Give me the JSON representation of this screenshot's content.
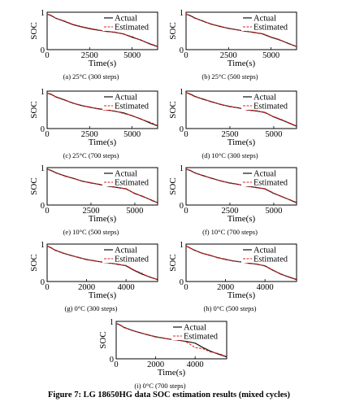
{
  "figure": {
    "caption": "Figure 7: LG 18650HG data SOC estimation results (mixed cycles)",
    "legend": {
      "actual": "Actual",
      "estimated": "Estimated"
    },
    "colors": {
      "actual": "#111111",
      "estimated": "#e02020"
    }
  },
  "chart_data": [
    {
      "type": "line",
      "subcaption": "(a) 25°C (300 steps)",
      "xlabel": "Time(s)",
      "ylabel": "SOC",
      "xlim": [
        0,
        6500
      ],
      "ylim": [
        0,
        1
      ],
      "xticks": [
        0,
        2500,
        5000
      ],
      "yticks": [
        0,
        1
      ],
      "legend_position": "top-right",
      "x": [
        0,
        250,
        500,
        1000,
        1500,
        2000,
        2500,
        3000,
        3500,
        4000,
        4500,
        5000,
        5500,
        6000,
        6500
      ],
      "series": [
        {
          "name": "Actual",
          "values": [
            0.95,
            0.91,
            0.84,
            0.76,
            0.67,
            0.61,
            0.56,
            0.52,
            0.49,
            0.46,
            0.42,
            0.33,
            0.26,
            0.16,
            0.08
          ]
        },
        {
          "name": "Estimated",
          "values": [
            0.95,
            0.9,
            0.84,
            0.77,
            0.68,
            0.62,
            0.57,
            0.53,
            0.48,
            0.47,
            0.41,
            0.35,
            0.25,
            0.17,
            0.09
          ]
        }
      ]
    },
    {
      "type": "line",
      "subcaption": "(b) 25°C (500 steps)",
      "xlabel": "Time(s)",
      "ylabel": "SOC",
      "xlim": [
        0,
        6500
      ],
      "ylim": [
        0,
        1
      ],
      "xticks": [
        0,
        2500,
        5000
      ],
      "yticks": [
        0,
        1
      ],
      "legend_position": "top-right",
      "x": [
        0,
        250,
        500,
        1000,
        1500,
        2000,
        2500,
        3000,
        3500,
        4000,
        4500,
        5000,
        5500,
        6000,
        6500
      ],
      "series": [
        {
          "name": "Actual",
          "values": [
            0.95,
            0.91,
            0.85,
            0.76,
            0.68,
            0.62,
            0.57,
            0.53,
            0.49,
            0.46,
            0.42,
            0.33,
            0.26,
            0.17,
            0.08
          ]
        },
        {
          "name": "Estimated",
          "values": [
            0.95,
            0.9,
            0.84,
            0.77,
            0.67,
            0.63,
            0.56,
            0.53,
            0.5,
            0.45,
            0.43,
            0.34,
            0.27,
            0.16,
            0.09
          ]
        }
      ]
    },
    {
      "type": "line",
      "subcaption": "(c) 25°C (700 steps)",
      "xlabel": "Time(s)",
      "ylabel": "SOC",
      "xlim": [
        0,
        6500
      ],
      "ylim": [
        0,
        1
      ],
      "xticks": [
        0,
        2500,
        5000
      ],
      "yticks": [
        0,
        1
      ],
      "legend_position": "top-right",
      "x": [
        0,
        250,
        500,
        1000,
        1500,
        2000,
        2500,
        3000,
        3500,
        4000,
        4500,
        5000,
        5500,
        6000,
        6500
      ],
      "series": [
        {
          "name": "Actual",
          "values": [
            0.95,
            0.91,
            0.85,
            0.77,
            0.68,
            0.62,
            0.57,
            0.53,
            0.5,
            0.46,
            0.42,
            0.34,
            0.26,
            0.16,
            0.07
          ]
        },
        {
          "name": "Estimated",
          "values": [
            0.95,
            0.92,
            0.84,
            0.76,
            0.69,
            0.61,
            0.58,
            0.52,
            0.49,
            0.47,
            0.4,
            0.35,
            0.25,
            0.18,
            0.08
          ]
        }
      ]
    },
    {
      "type": "line",
      "subcaption": "(d) 10°C (300 steps)",
      "xlabel": "Time(s)",
      "ylabel": "SOC",
      "xlim": [
        0,
        6300
      ],
      "ylim": [
        0,
        1
      ],
      "xticks": [
        0,
        2500,
        5000
      ],
      "yticks": [
        0,
        1
      ],
      "legend_position": "top-right",
      "x": [
        0,
        250,
        500,
        1000,
        1500,
        2000,
        2500,
        3000,
        3500,
        4000,
        4500,
        5000,
        5500,
        6000,
        6300
      ],
      "series": [
        {
          "name": "Actual",
          "values": [
            0.96,
            0.92,
            0.86,
            0.78,
            0.71,
            0.64,
            0.59,
            0.55,
            0.5,
            0.47,
            0.43,
            0.31,
            0.22,
            0.12,
            0.06
          ]
        },
        {
          "name": "Estimated",
          "values": [
            0.96,
            0.91,
            0.85,
            0.79,
            0.7,
            0.65,
            0.58,
            0.56,
            0.49,
            0.48,
            0.42,
            0.32,
            0.23,
            0.13,
            0.07
          ]
        }
      ]
    },
    {
      "type": "line",
      "subcaption": "(e) 10°C (500 steps)",
      "xlabel": "Time(s)",
      "ylabel": "SOC",
      "xlim": [
        0,
        6300
      ],
      "ylim": [
        0,
        1
      ],
      "xticks": [
        0,
        2500,
        5000
      ],
      "yticks": [
        0,
        1
      ],
      "legend_position": "top-right",
      "x": [
        0,
        250,
        500,
        1000,
        1500,
        2000,
        2500,
        3000,
        3500,
        4000,
        4500,
        5000,
        5500,
        6000,
        6300
      ],
      "series": [
        {
          "name": "Actual",
          "values": [
            0.96,
            0.92,
            0.86,
            0.78,
            0.71,
            0.64,
            0.59,
            0.55,
            0.5,
            0.47,
            0.43,
            0.31,
            0.22,
            0.12,
            0.06
          ]
        },
        {
          "name": "Estimated",
          "values": [
            0.96,
            0.91,
            0.87,
            0.77,
            0.72,
            0.63,
            0.6,
            0.54,
            0.51,
            0.46,
            0.44,
            0.3,
            0.23,
            0.11,
            0.07
          ]
        }
      ]
    },
    {
      "type": "line",
      "subcaption": "(f) 10°C (700 steps)",
      "xlabel": "Time(s)",
      "ylabel": "SOC",
      "xlim": [
        0,
        6300
      ],
      "ylim": [
        0,
        1
      ],
      "xticks": [
        0,
        2500,
        5000
      ],
      "yticks": [
        0,
        1
      ],
      "legend_position": "top-right",
      "x": [
        0,
        250,
        500,
        1000,
        1500,
        2000,
        2500,
        3000,
        3500,
        4000,
        4500,
        5000,
        5500,
        6000,
        6300
      ],
      "series": [
        {
          "name": "Actual",
          "values": [
            0.96,
            0.92,
            0.86,
            0.78,
            0.71,
            0.64,
            0.59,
            0.55,
            0.5,
            0.47,
            0.43,
            0.31,
            0.22,
            0.12,
            0.06
          ]
        },
        {
          "name": "Estimated",
          "values": [
            0.96,
            0.93,
            0.85,
            0.79,
            0.7,
            0.65,
            0.58,
            0.55,
            0.51,
            0.46,
            0.44,
            0.32,
            0.21,
            0.13,
            0.07
          ]
        }
      ]
    },
    {
      "type": "line",
      "subcaption": "(g) 0°C (300 steps)",
      "xlabel": "Time(s)",
      "ylabel": "SOC",
      "xlim": [
        0,
        5600
      ],
      "ylim": [
        0,
        1
      ],
      "xticks": [
        0,
        2000,
        4000
      ],
      "yticks": [
        0,
        1
      ],
      "legend_position": "top-right",
      "x": [
        0,
        200,
        400,
        800,
        1200,
        1600,
        2000,
        2400,
        2800,
        3200,
        3600,
        4000,
        4400,
        4800,
        5200,
        5600
      ],
      "series": [
        {
          "name": "Actual",
          "values": [
            0.95,
            0.9,
            0.84,
            0.76,
            0.7,
            0.64,
            0.59,
            0.55,
            0.52,
            0.49,
            0.46,
            0.42,
            0.3,
            0.2,
            0.12,
            0.05
          ]
        },
        {
          "name": "Estimated",
          "values": [
            0.95,
            0.91,
            0.83,
            0.77,
            0.69,
            0.65,
            0.58,
            0.56,
            0.51,
            0.5,
            0.45,
            0.43,
            0.31,
            0.22,
            0.11,
            0.06
          ]
        }
      ]
    },
    {
      "type": "line",
      "subcaption": "(h) 0°C (500 steps)",
      "xlabel": "Time(s)",
      "ylabel": "SOC",
      "xlim": [
        0,
        5600
      ],
      "ylim": [
        0,
        1
      ],
      "xticks": [
        0,
        2000,
        4000
      ],
      "yticks": [
        0,
        1
      ],
      "legend_position": "top-right",
      "x": [
        0,
        200,
        400,
        800,
        1200,
        1600,
        2000,
        2400,
        2800,
        3200,
        3600,
        4000,
        4400,
        4800,
        5200,
        5600
      ],
      "series": [
        {
          "name": "Actual",
          "values": [
            0.95,
            0.9,
            0.84,
            0.76,
            0.7,
            0.64,
            0.59,
            0.55,
            0.52,
            0.49,
            0.46,
            0.42,
            0.3,
            0.2,
            0.12,
            0.05
          ]
        },
        {
          "name": "Estimated",
          "values": [
            0.95,
            0.89,
            0.85,
            0.75,
            0.71,
            0.63,
            0.6,
            0.54,
            0.53,
            0.48,
            0.47,
            0.41,
            0.31,
            0.19,
            0.13,
            0.06
          ]
        }
      ]
    },
    {
      "type": "line",
      "subcaption": "(i) 0°C (700 steps)",
      "xlabel": "Time(s)",
      "ylabel": "SOC",
      "xlim": [
        0,
        5600
      ],
      "ylim": [
        0,
        1
      ],
      "xticks": [
        0,
        2000,
        4000
      ],
      "yticks": [
        0,
        1
      ],
      "legend_position": "top-right",
      "x": [
        0,
        200,
        400,
        800,
        1200,
        1600,
        2000,
        2400,
        2800,
        3200,
        3600,
        4000,
        4400,
        4800,
        5200,
        5600
      ],
      "series": [
        {
          "name": "Actual",
          "values": [
            0.95,
            0.9,
            0.84,
            0.76,
            0.7,
            0.64,
            0.59,
            0.55,
            0.52,
            0.49,
            0.46,
            0.42,
            0.3,
            0.2,
            0.12,
            0.05
          ]
        },
        {
          "name": "Estimated",
          "values": [
            0.95,
            0.91,
            0.83,
            0.77,
            0.69,
            0.65,
            0.58,
            0.56,
            0.51,
            0.5,
            0.44,
            0.3,
            0.27,
            0.18,
            0.14,
            0.06
          ]
        }
      ]
    }
  ]
}
